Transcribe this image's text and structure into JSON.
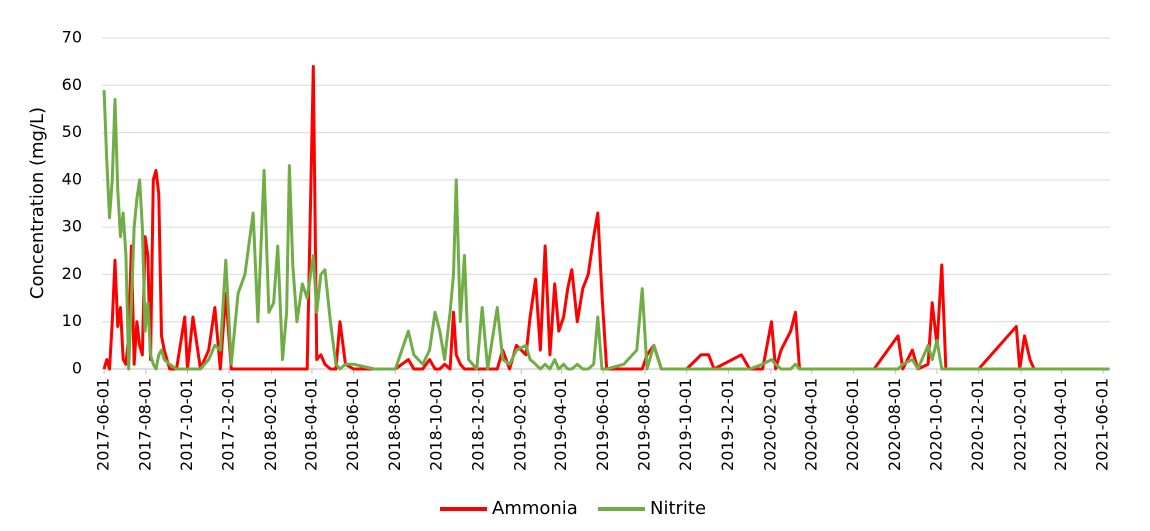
{
  "chart_data": {
    "type": "line",
    "y_label": "Concentration (mg/L)",
    "x": [
      "2017-06-01",
      "2017-06-05",
      "2017-06-09",
      "2017-06-13",
      "2017-06-17",
      "2017-06-21",
      "2017-06-25",
      "2017-06-29",
      "2017-07-03",
      "2017-07-07",
      "2017-07-11",
      "2017-07-15",
      "2017-07-19",
      "2017-07-23",
      "2017-07-27",
      "2017-07-31",
      "2017-08-04",
      "2017-08-08",
      "2017-08-12",
      "2017-08-16",
      "2017-08-20",
      "2017-08-24",
      "2017-08-28",
      "2017-09-05",
      "2017-09-15",
      "2017-09-27",
      "2017-10-01",
      "2017-10-09",
      "2017-10-20",
      "2017-11-01",
      "2017-11-10",
      "2017-11-18",
      "2017-11-26",
      "2017-12-04",
      "2017-12-14",
      "2017-12-24",
      "2018-01-05",
      "2018-01-12",
      "2018-01-21",
      "2018-01-28",
      "2018-02-04",
      "2018-02-10",
      "2018-02-17",
      "2018-02-23",
      "2018-02-27",
      "2018-03-04",
      "2018-03-10",
      "2018-03-18",
      "2018-03-25",
      "2018-04-03",
      "2018-04-08",
      "2018-04-14",
      "2018-04-20",
      "2018-04-28",
      "2018-05-06",
      "2018-05-12",
      "2018-05-20",
      "2018-06-01",
      "2018-07-01",
      "2018-08-01",
      "2018-08-20",
      "2018-08-28",
      "2018-09-10",
      "2018-09-20",
      "2018-09-28",
      "2018-10-05",
      "2018-10-12",
      "2018-10-20",
      "2018-10-25",
      "2018-10-29",
      "2018-11-04",
      "2018-11-10",
      "2018-11-16",
      "2018-11-28",
      "2018-12-06",
      "2018-12-14",
      "2018-12-28",
      "2019-01-05",
      "2019-01-15",
      "2019-01-25",
      "2019-02-08",
      "2019-02-14",
      "2019-02-22",
      "2019-03-01",
      "2019-03-08",
      "2019-03-15",
      "2019-03-22",
      "2019-03-28",
      "2019-04-04",
      "2019-04-10",
      "2019-04-16",
      "2019-04-24",
      "2019-05-02",
      "2019-05-10",
      "2019-05-18",
      "2019-05-24",
      "2019-05-30",
      "2019-06-06",
      "2019-07-01",
      "2019-07-20",
      "2019-07-28",
      "2019-08-04",
      "2019-08-14",
      "2019-08-25",
      "2019-10-01",
      "2019-10-22",
      "2019-11-02",
      "2019-11-10",
      "2019-12-20",
      "2020-01-01",
      "2020-01-20",
      "2020-02-02",
      "2020-02-08",
      "2020-02-16",
      "2020-03-01",
      "2020-03-08",
      "2020-03-14",
      "2020-05-01",
      "2020-07-01",
      "2020-08-05",
      "2020-08-12",
      "2020-08-26",
      "2020-09-03",
      "2020-09-18",
      "2020-09-24",
      "2020-10-01",
      "2020-10-08",
      "2020-10-14",
      "2020-12-01",
      "2021-01-25",
      "2021-01-30",
      "2021-02-06",
      "2021-02-14",
      "2021-02-20",
      "2021-06-10"
    ],
    "series": [
      {
        "name": "Ammonia",
        "color": "#ff0000",
        "values": [
          0,
          2,
          0,
          10,
          23,
          9,
          13,
          2,
          1,
          7,
          26,
          1,
          10,
          5,
          3,
          28,
          24,
          2,
          40,
          42,
          37,
          7,
          4,
          0,
          0,
          11,
          0,
          11,
          0,
          4,
          13,
          0,
          16,
          0,
          0,
          0,
          0,
          0,
          0,
          0,
          0,
          0,
          0,
          0,
          0,
          0,
          0,
          0,
          0,
          64,
          2,
          3,
          1,
          0,
          0,
          10,
          1,
          0,
          0,
          0,
          2,
          0,
          0,
          2,
          0,
          0,
          1,
          0,
          12,
          3,
          1,
          0,
          0,
          0,
          0,
          0,
          0,
          4,
          0,
          5,
          3,
          11,
          19,
          4,
          26,
          3,
          18,
          8,
          11,
          17,
          21,
          10,
          17,
          20,
          28,
          33,
          16,
          0,
          0,
          0,
          0,
          3,
          5,
          0,
          0,
          3,
          3,
          0,
          3,
          0,
          0,
          10,
          0,
          4,
          8,
          12,
          0,
          0,
          0,
          7,
          0,
          4,
          0,
          1,
          14,
          5,
          22,
          0,
          0,
          9,
          0,
          7,
          2,
          0,
          0
        ]
      },
      {
        "name": "Nitrite",
        "color": "#70ad47",
        "values": [
          59,
          44,
          32,
          40,
          57,
          38,
          28,
          33,
          24,
          0,
          14,
          30,
          36,
          40,
          30,
          8,
          14,
          3,
          1,
          0,
          3,
          4,
          2,
          1,
          0,
          0,
          0,
          0,
          0,
          2,
          5,
          4,
          23,
          1,
          16,
          20,
          33,
          10,
          42,
          12,
          14,
          26,
          2,
          12,
          43,
          22,
          10,
          18,
          15,
          24,
          12,
          20,
          21,
          10,
          1,
          0,
          1,
          1,
          0,
          0,
          8,
          3,
          1,
          4,
          12,
          8,
          2,
          12,
          20,
          40,
          10,
          24,
          2,
          0,
          13,
          0,
          13,
          2,
          1,
          4,
          5,
          2,
          1,
          0,
          1,
          0,
          2,
          0,
          1,
          0,
          0,
          1,
          0,
          0,
          1,
          11,
          0,
          0,
          1,
          4,
          17,
          0,
          5,
          0,
          0,
          0,
          0,
          0,
          0,
          0,
          1,
          2,
          1,
          0,
          0,
          1,
          0,
          0,
          0,
          0,
          1,
          2,
          0,
          5,
          2,
          6,
          0,
          0,
          0,
          0,
          0,
          0,
          0,
          0,
          0
        ]
      }
    ],
    "xlim": [
      "2017-05-29",
      "2021-06-11"
    ],
    "xticks": [
      "2017-06-01",
      "2017-08-01",
      "2017-10-01",
      "2017-12-01",
      "2018-02-01",
      "2018-04-01",
      "2018-06-01",
      "2018-08-01",
      "2018-10-01",
      "2018-12-01",
      "2019-02-01",
      "2019-04-01",
      "2019-06-01",
      "2019-08-01",
      "2019-10-01",
      "2019-12-01",
      "2020-02-01",
      "2020-04-01",
      "2020-06-01",
      "2020-08-01",
      "2020-10-01",
      "2020-12-01",
      "2021-02-01",
      "2021-04-01",
      "2021-06-01"
    ],
    "ylim": [
      0,
      70
    ],
    "yticks": [
      0,
      10,
      20,
      30,
      40,
      50,
      60,
      70
    ],
    "grid": true,
    "legend": "bottom"
  }
}
